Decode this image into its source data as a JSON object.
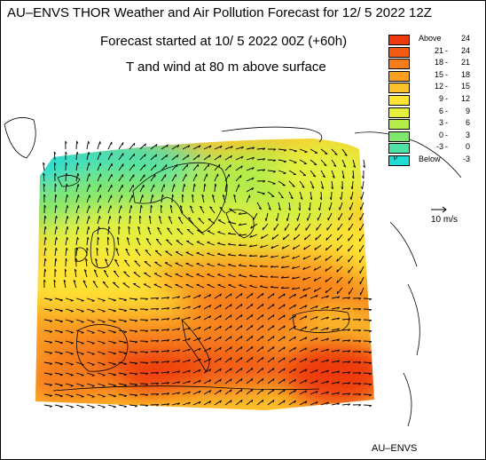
{
  "header": {
    "title": "AU–ENVS THOR Weather and Air Pollution Forecast for 12/ 5 2022  12Z",
    "forecast_start": "Forecast started at 10/ 5 2022  00Z (+60h)",
    "field": "T and wind at 80 m above surface"
  },
  "legend": [
    {
      "low": "Above",
      "high": "24",
      "color": "#ee3a0c"
    },
    {
      "low": "21",
      "high": "24",
      "color": "#f35b12"
    },
    {
      "low": "18",
      "high": "21",
      "color": "#f77d1a"
    },
    {
      "low": "15",
      "high": "18",
      "color": "#fb9f22"
    },
    {
      "low": "12",
      "high": "15",
      "color": "#fdc22b"
    },
    {
      "low": "9",
      "high": "12",
      "color": "#fee435"
    },
    {
      "low": "6",
      "high": "9",
      "color": "#e4f03c"
    },
    {
      "low": "3",
      "high": "6",
      "color": "#b4ec4a"
    },
    {
      "low": "0",
      "high": "3",
      "color": "#7fe76c"
    },
    {
      "low": "-3",
      "high": "0",
      "color": "#4fe2a4"
    },
    {
      "low": "Below",
      "high": "-3",
      "color": "#1fdcd4",
      "mark": "p"
    }
  ],
  "wind_scale": {
    "label": "10 m/s"
  },
  "footer": {
    "source": "AU–ENVS"
  },
  "colors": {
    "warm_core": "#ee3a0c",
    "cold_north": "#1fdcd4",
    "arrow": "#000000"
  }
}
